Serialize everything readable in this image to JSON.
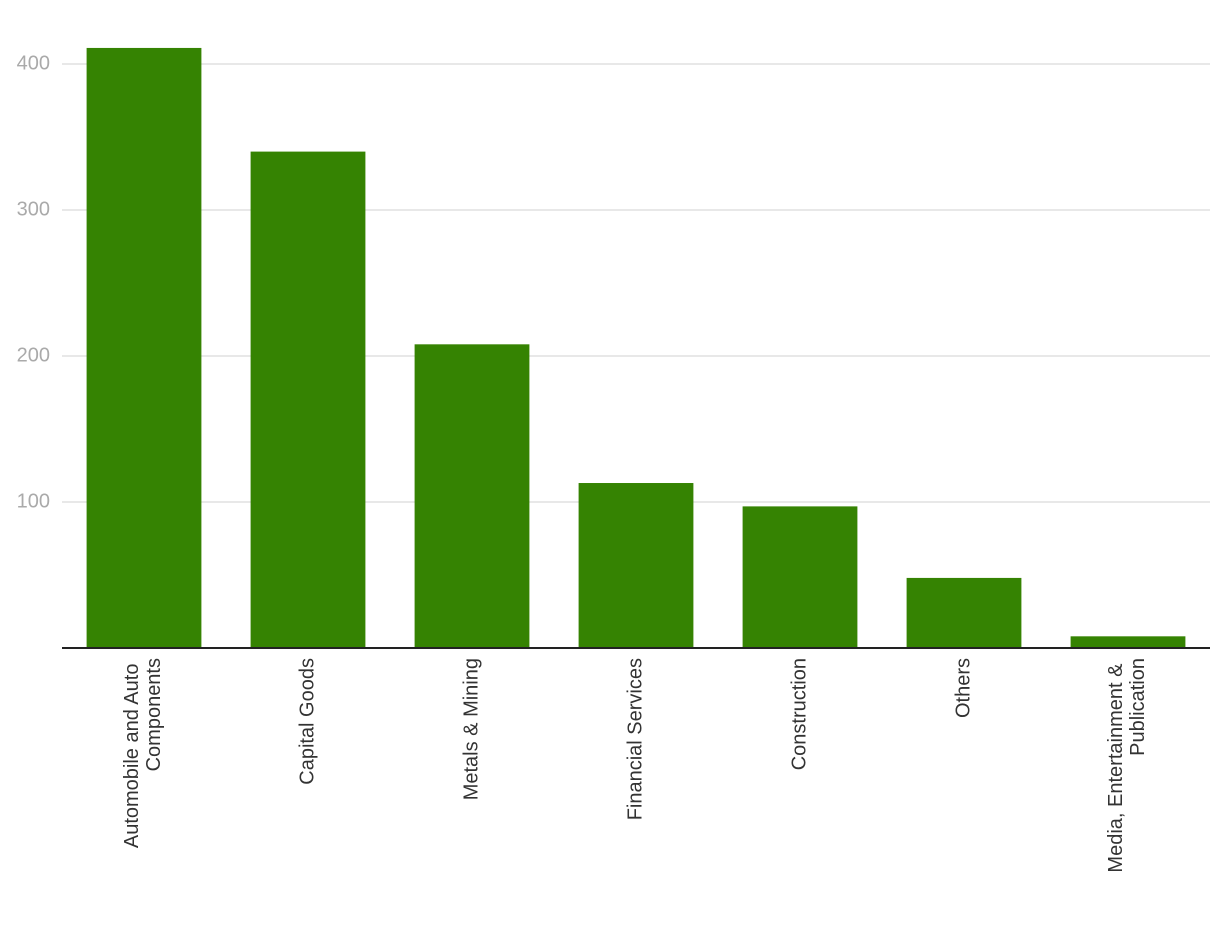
{
  "chart_data": {
    "type": "bar",
    "categories": [
      "Automobile and Auto Components",
      "Capital Goods",
      "Metals & Mining",
      "Financial Services",
      "Construction",
      "Others",
      "Media, Entertainment & Publication"
    ],
    "values": [
      411,
      340,
      208,
      113,
      97,
      48,
      8
    ],
    "color": "#358302",
    "ylim": [
      0,
      420
    ],
    "yticks": [
      100,
      200,
      300,
      400
    ],
    "grid": true
  }
}
